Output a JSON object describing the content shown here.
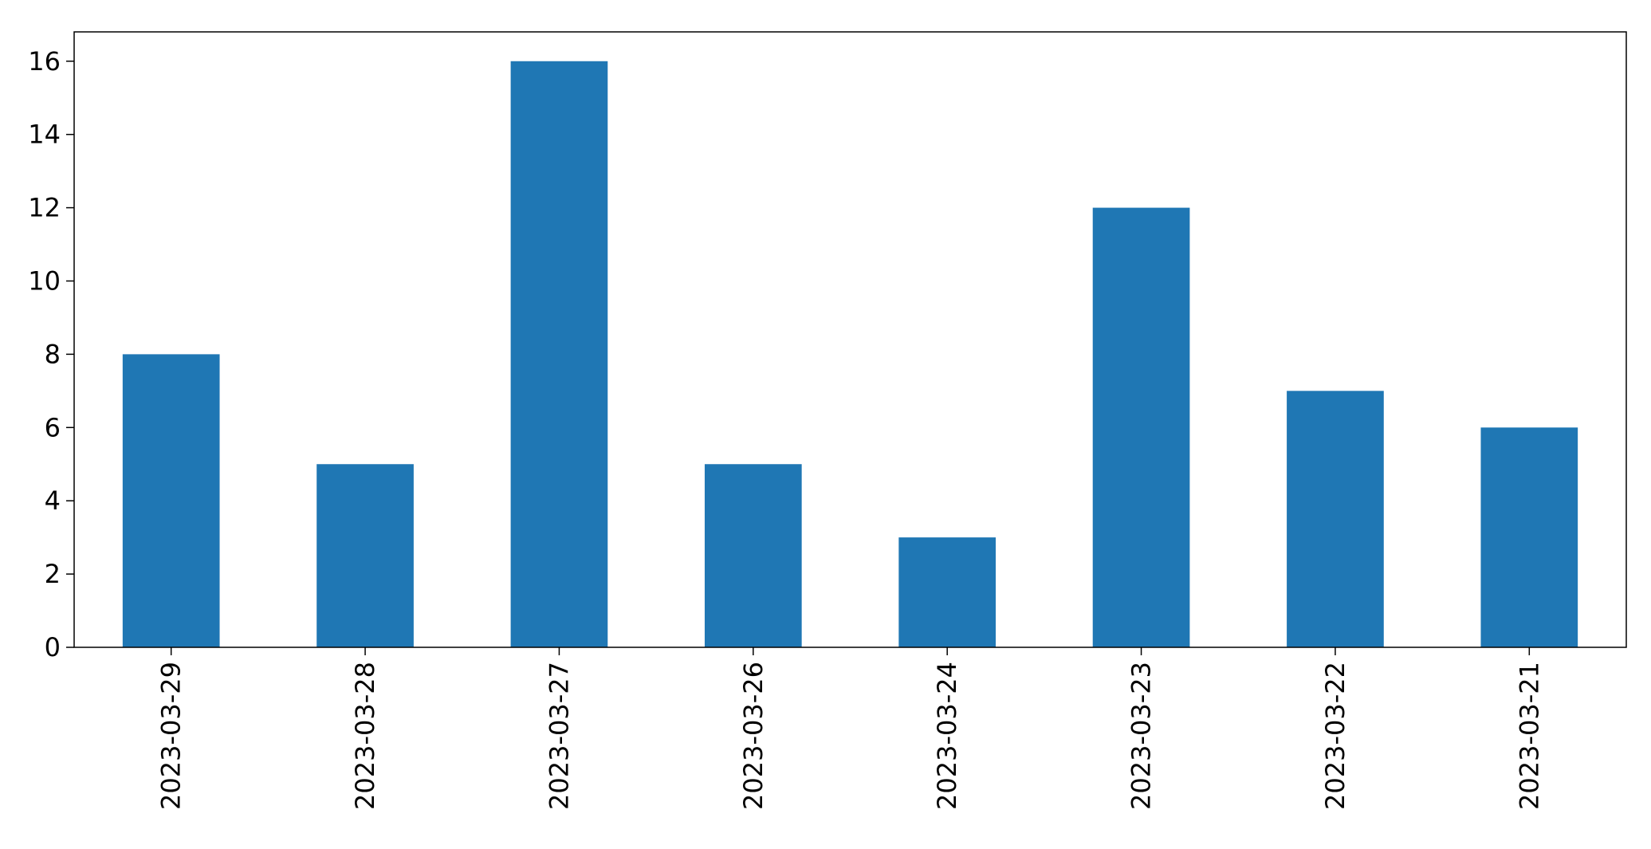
{
  "chart_data": {
    "type": "bar",
    "title": "",
    "xlabel": "",
    "ylabel": "",
    "categories": [
      "2023-03-29",
      "2023-03-28",
      "2023-03-27",
      "2023-03-26",
      "2023-03-24",
      "2023-03-23",
      "2023-03-22",
      "2023-03-21"
    ],
    "values": [
      8,
      5,
      16,
      5,
      3,
      12,
      7,
      6
    ],
    "ylim": [
      0,
      16.8
    ],
    "yticks": [
      0,
      2,
      4,
      6,
      8,
      10,
      12,
      14,
      16
    ],
    "grid": false,
    "legend": "none",
    "colors": {
      "bar": "#1f77b4",
      "axis": "#000000"
    }
  }
}
